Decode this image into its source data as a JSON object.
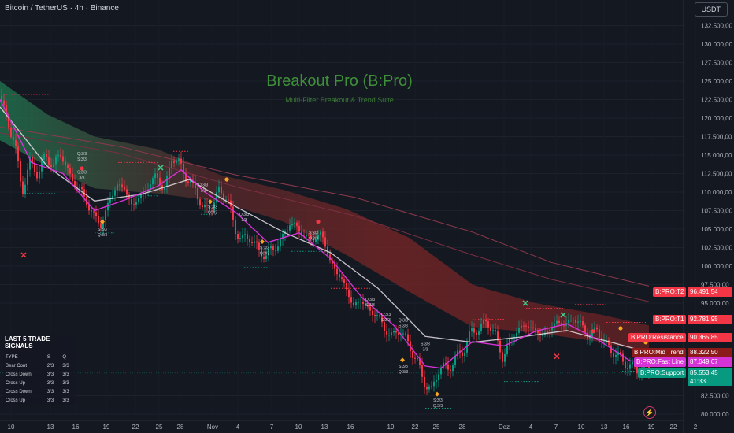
{
  "header": {
    "title": "Bitcoin / TetherUS · 4h · Binance",
    "currency": "USDT"
  },
  "chart_data": {
    "type": "candlestick",
    "title": "Breakout Pro (B:Pro)",
    "subtitle": "Multi-Filter Breakout & Trend Suite",
    "ylim": [
      79000,
      134000
    ],
    "y_ticks": [
      {
        "value": 132500,
        "label": "132.500,00"
      },
      {
        "value": 130000,
        "label": "130.000,00"
      },
      {
        "value": 127500,
        "label": "127.500,00"
      },
      {
        "value": 125000,
        "label": "125.000,00"
      },
      {
        "value": 122500,
        "label": "122.500,00"
      },
      {
        "value": 120000,
        "label": "120.000,00"
      },
      {
        "value": 117500,
        "label": "117.500,00"
      },
      {
        "value": 115000,
        "label": "115.000,00"
      },
      {
        "value": 112500,
        "label": "112.500,00"
      },
      {
        "value": 110000,
        "label": "110.000,00"
      },
      {
        "value": 107500,
        "label": "107.500,00"
      },
      {
        "value": 105000,
        "label": "105.000,00"
      },
      {
        "value": 102500,
        "label": "102.500,00"
      },
      {
        "value": 100000,
        "label": "100.000,00"
      },
      {
        "value": 97500,
        "label": "97.500,00"
      },
      {
        "value": 95000,
        "label": "95.000,00"
      },
      {
        "value": 82500,
        "label": "82.500,00"
      },
      {
        "value": 80000,
        "label": "80.000,00"
      }
    ],
    "x_ticks": [
      "10",
      "13",
      "16",
      "19",
      "22",
      "25",
      "28",
      "Nov",
      "4",
      "7",
      "10",
      "13",
      "16",
      "19",
      "22",
      "25",
      "28",
      "Dez",
      "4",
      "7",
      "10",
      "13",
      "16",
      "19",
      "22",
      "2"
    ],
    "price_path": [
      [
        0,
        123000
      ],
      [
        8,
        120000
      ],
      [
        18,
        117000
      ],
      [
        28,
        110000
      ],
      [
        38,
        114000
      ],
      [
        48,
        112500
      ],
      [
        58,
        115000
      ],
      [
        68,
        113500
      ],
      [
        78,
        115500
      ],
      [
        88,
        112000
      ],
      [
        98,
        111000
      ],
      [
        108,
        109000
      ],
      [
        118,
        107000
      ],
      [
        128,
        105500
      ],
      [
        138,
        108500
      ],
      [
        148,
        111000
      ],
      [
        158,
        110500
      ],
      [
        168,
        108000
      ],
      [
        178,
        109500
      ],
      [
        188,
        110500
      ],
      [
        198,
        112500
      ],
      [
        208,
        110000
      ],
      [
        218,
        114500
      ],
      [
        228,
        114000
      ],
      [
        238,
        111500
      ],
      [
        248,
        110500
      ],
      [
        258,
        107500
      ],
      [
        268,
        108000
      ],
      [
        278,
        110000
      ],
      [
        288,
        109500
      ],
      [
        298,
        105000
      ],
      [
        308,
        103500
      ],
      [
        318,
        104000
      ],
      [
        328,
        102000
      ],
      [
        338,
        101500
      ],
      [
        348,
        102500
      ],
      [
        358,
        103500
      ],
      [
        368,
        106000
      ],
      [
        378,
        105000
      ],
      [
        388,
        104000
      ],
      [
        398,
        103500
      ],
      [
        408,
        104500
      ],
      [
        418,
        101000
      ],
      [
        428,
        99000
      ],
      [
        438,
        97500
      ],
      [
        448,
        94500
      ],
      [
        458,
        95500
      ],
      [
        468,
        94000
      ],
      [
        478,
        93500
      ],
      [
        488,
        91500
      ],
      [
        498,
        90500
      ],
      [
        508,
        91500
      ],
      [
        518,
        89500
      ],
      [
        528,
        87500
      ],
      [
        538,
        84500
      ],
      [
        548,
        83000
      ],
      [
        558,
        86500
      ],
      [
        568,
        86000
      ],
      [
        578,
        87500
      ],
      [
        588,
        88500
      ],
      [
        598,
        91000
      ],
      [
        608,
        91500
      ],
      [
        618,
        92500
      ],
      [
        628,
        91000
      ],
      [
        638,
        87500
      ],
      [
        648,
        90000
      ],
      [
        658,
        91500
      ],
      [
        668,
        92000
      ],
      [
        678,
        91500
      ],
      [
        688,
        90500
      ],
      [
        698,
        91500
      ],
      [
        708,
        92500
      ],
      [
        718,
        92000
      ],
      [
        728,
        93000
      ],
      [
        738,
        92000
      ],
      [
        748,
        90500
      ],
      [
        758,
        91500
      ],
      [
        768,
        89500
      ],
      [
        778,
        88500
      ],
      [
        788,
        87500
      ],
      [
        798,
        86500
      ],
      [
        808,
        86000
      ],
      [
        818,
        86500
      ],
      [
        824,
        85553
      ]
    ],
    "fast_line": [
      [
        0,
        122500
      ],
      [
        40,
        114000
      ],
      [
        80,
        112500
      ],
      [
        120,
        107500
      ],
      [
        160,
        109000
      ],
      [
        200,
        110800
      ],
      [
        230,
        113000
      ],
      [
        260,
        110000
      ],
      [
        300,
        107200
      ],
      [
        340,
        103200
      ],
      [
        380,
        104500
      ],
      [
        420,
        101000
      ],
      [
        460,
        95700
      ],
      [
        500,
        92000
      ],
      [
        540,
        86500
      ],
      [
        560,
        86200
      ],
      [
        600,
        89800
      ],
      [
        640,
        89200
      ],
      [
        680,
        91200
      ],
      [
        720,
        92200
      ],
      [
        760,
        90000
      ],
      [
        800,
        87200
      ],
      [
        824,
        87049
      ]
    ],
    "mid_line": [
      [
        0,
        121500
      ],
      [
        60,
        113500
      ],
      [
        120,
        108800
      ],
      [
        180,
        109700
      ],
      [
        240,
        111700
      ],
      [
        300,
        108000
      ],
      [
        360,
        104600
      ],
      [
        420,
        101800
      ],
      [
        480,
        97000
      ],
      [
        540,
        90500
      ],
      [
        600,
        89700
      ],
      [
        660,
        90400
      ],
      [
        720,
        91300
      ],
      [
        780,
        89600
      ],
      [
        824,
        88322
      ]
    ],
    "cloud_top": [
      [
        0,
        125000
      ],
      [
        60,
        120500
      ],
      [
        120,
        117500
      ],
      [
        200,
        115800
      ],
      [
        280,
        112300
      ],
      [
        360,
        110300
      ],
      [
        440,
        107700
      ],
      [
        520,
        103800
      ],
      [
        600,
        97500
      ],
      [
        680,
        95000
      ],
      [
        760,
        93500
      ],
      [
        824,
        92000
      ]
    ],
    "cloud_bottom": [
      [
        0,
        117000
      ],
      [
        60,
        113500
      ],
      [
        120,
        110500
      ],
      [
        200,
        109800
      ],
      [
        280,
        108700
      ],
      [
        360,
        106000
      ],
      [
        440,
        101500
      ],
      [
        520,
        96500
      ],
      [
        600,
        91800
      ],
      [
        680,
        91000
      ],
      [
        760,
        89800
      ],
      [
        824,
        88300
      ]
    ],
    "slow_line": [
      [
        0,
        118800
      ],
      [
        150,
        116200
      ],
      [
        300,
        112300
      ],
      [
        450,
        109300
      ],
      [
        600,
        104600
      ],
      [
        700,
        100500
      ],
      [
        824,
        97300
      ]
    ],
    "slow_line_2": [
      [
        0,
        118000
      ],
      [
        150,
        115300
      ],
      [
        300,
        110700
      ],
      [
        450,
        106800
      ],
      [
        600,
        101500
      ],
      [
        700,
        98200
      ],
      [
        824,
        95200
      ]
    ],
    "markers": [
      {
        "kind": "cross",
        "color": "green",
        "x": 204,
        "y": 113300
      },
      {
        "kind": "cross",
        "color": "green",
        "x": 667,
        "y": 95000
      },
      {
        "kind": "cross",
        "color": "green",
        "x": 715,
        "y": 93400
      },
      {
        "kind": "cross",
        "color": "red",
        "x": 30,
        "y": 101500
      },
      {
        "kind": "cross",
        "color": "red",
        "x": 707,
        "y": 87800
      },
      {
        "kind": "dot",
        "color": "red",
        "x": 104,
        "y": 113200
      },
      {
        "kind": "dot",
        "color": "red",
        "x": 404,
        "y": 106000
      },
      {
        "kind": "dot",
        "color": "red",
        "x": 753,
        "y": 91200
      },
      {
        "kind": "dot",
        "color": "orange",
        "x": 288,
        "y": 111700
      },
      {
        "kind": "dot",
        "color": "orange",
        "x": 788,
        "y": 91600
      },
      {
        "kind": "dot",
        "color": "orange",
        "x": 820,
        "y": 89700
      },
      {
        "kind": "diamond",
        "color": "orange",
        "x": 130,
        "y": 106000
      },
      {
        "kind": "diamond",
        "color": "orange",
        "x": 267,
        "y": 108700
      },
      {
        "kind": "diamond",
        "color": "orange",
        "x": 333,
        "y": 103300
      },
      {
        "kind": "diamond",
        "color": "orange",
        "x": 511,
        "y": 87300
      },
      {
        "kind": "diamond",
        "color": "orange",
        "x": 555,
        "y": 82700
      }
    ],
    "signal_labels": [
      {
        "x": 104,
        "y": 115000,
        "lines": [
          "Q:3/3",
          "S:3/3"
        ]
      },
      {
        "x": 104,
        "y": 112500,
        "lines": [
          "S:3/3",
          "3/3"
        ]
      },
      {
        "x": 130,
        "y": 104800,
        "lines": [
          "S:3/3",
          "Q:3/3"
        ]
      },
      {
        "x": 258,
        "y": 110800,
        "lines": [
          "Q:3/3",
          "3/3"
        ]
      },
      {
        "x": 270,
        "y": 107800,
        "lines": [
          "S:3/3",
          "Q:3/3"
        ]
      },
      {
        "x": 310,
        "y": 106800,
        "lines": [
          "Q:3/3",
          "3/3"
        ]
      },
      {
        "x": 336,
        "y": 102300,
        "lines": [
          "S:3/3",
          "Q:3/3"
        ]
      },
      {
        "x": 398,
        "y": 104300,
        "lines": [
          "S:3/3",
          "Q:3/3"
        ]
      },
      {
        "x": 470,
        "y": 95300,
        "lines": [
          "Q:3/3",
          "S:3/3"
        ]
      },
      {
        "x": 490,
        "y": 93300,
        "lines": [
          "Q:3/3",
          "S:3/3"
        ]
      },
      {
        "x": 512,
        "y": 92500,
        "lines": [
          "Q:3/3",
          "S:3/3"
        ]
      },
      {
        "x": 512,
        "y": 86300,
        "lines": [
          "S:3/3",
          "Q:3/3"
        ]
      },
      {
        "x": 540,
        "y": 89300,
        "lines": [
          "S:3/3",
          "3/3"
        ]
      },
      {
        "x": 556,
        "y": 81700,
        "lines": [
          "S:3/3",
          "Q:3/3"
        ]
      }
    ],
    "price_labels": [
      {
        "name": "B:PRO:T2",
        "value": 96491.54,
        "text": "96.491,54",
        "y": 96491.54,
        "color": "#f23645",
        "text_color": "#ffffff"
      },
      {
        "name": "B:PRO:T1",
        "value": 92781.95,
        "text": "92.781,95",
        "y": 92781.95,
        "color": "#f23645",
        "text_color": "#ffffff"
      },
      {
        "name": "B:PRO:Resistance",
        "value": 90365.85,
        "text": "90.365,85",
        "y": 90365.85,
        "color": "#f23645",
        "text_color": "#ffffff"
      },
      {
        "name": "B:PRO:Mid Trend",
        "value": 88322.5,
        "text": "88.322,50",
        "y": 88322.5,
        "color": "#8b1a1a",
        "text_color": "#ffffff"
      },
      {
        "name": "B:PRO:Fast Line",
        "value": 87049.67,
        "text": "87.049,67",
        "y": 87049.67,
        "color": "#d633d6",
        "text_color": "#ffffff"
      },
      {
        "name": "B:PRO:Support",
        "value": 85553.45,
        "text": "85.553,45",
        "y": 85553.45,
        "color": "#089981",
        "text_color": "#ffffff",
        "timer": "41:33"
      }
    ]
  },
  "trade_panel": {
    "title": "LAST 5 TRADE SIGNALS",
    "columns": [
      "TYPE",
      "S",
      "Q"
    ],
    "rows": [
      [
        "Bear Cont",
        "2/3",
        "3/3"
      ],
      [
        "Cross Down",
        "3/3",
        "3/3"
      ],
      [
        "Cross Up",
        "3/3",
        "3/3"
      ],
      [
        "Cross Down",
        "3/3",
        "3/3"
      ],
      [
        "Cross Up",
        "3/3",
        "3/3"
      ]
    ]
  },
  "colors": {
    "background": "#141821",
    "bull": "#089981",
    "bear": "#f23645",
    "fast_line": "#d633d6",
    "mid_line": "#e6dfe6",
    "title": "#3f8f3a"
  }
}
